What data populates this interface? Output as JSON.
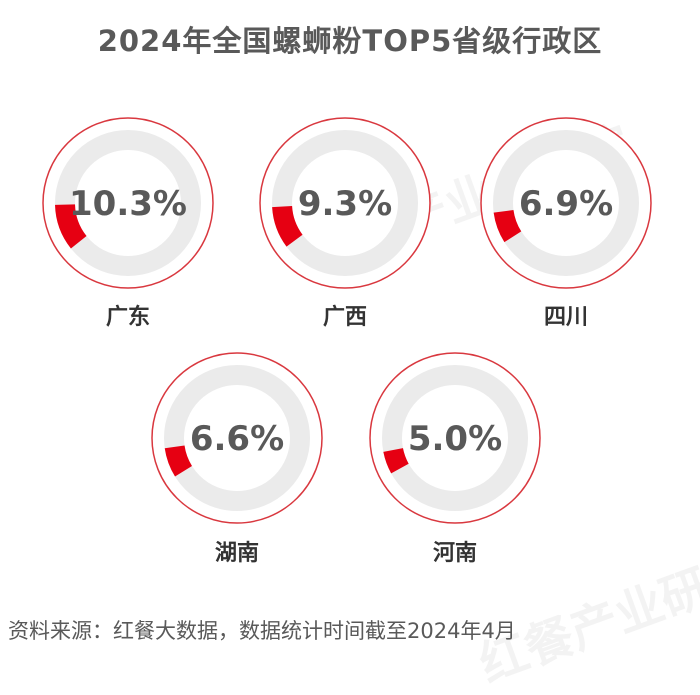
{
  "title": "2024年全国螺蛳粉TOP5省级行政区",
  "source": "资料来源：红餐大数据，数据统计时间截至2024年4月",
  "watermark": "红餐产业研究院",
  "colors": {
    "accent": "#e60012",
    "track": "#ebebeb",
    "ring_border": "#d9383f",
    "text": "#595959"
  },
  "chart_data": {
    "type": "pie",
    "title": "2024年全国螺蛳粉TOP5省级行政区",
    "unit": "%",
    "categories": [
      "广东",
      "广西",
      "四川",
      "湖南",
      "河南"
    ],
    "values": [
      10.3,
      9.3,
      6.9,
      6.6,
      5.0
    ],
    "labels": [
      "10.3%",
      "9.3%",
      "6.9%",
      "6.6%",
      "5.0%"
    ]
  }
}
